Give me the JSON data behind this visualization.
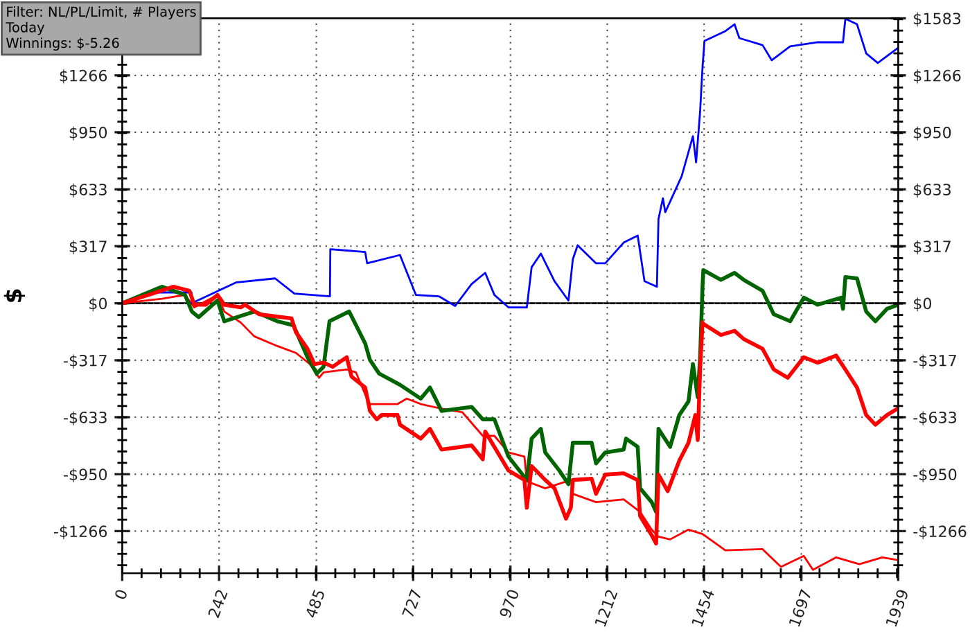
{
  "chart_data": {
    "type": "line",
    "ylabel": "$",
    "annotations": [
      "Filter: NL/PL/Limit, # Players\nToday\nWinnings: $-5.26"
    ],
    "xlim": [
      0,
      1939
    ],
    "xticks": [
      0,
      242,
      485,
      727,
      970,
      1212,
      1454,
      1697,
      1939
    ],
    "ylim": [
      -1500,
      1583
    ],
    "yticks": [
      {
        "value": -1266,
        "label": "-$1266"
      },
      {
        "value": -950,
        "label": "-$950"
      },
      {
        "value": -633,
        "label": "-$633"
      },
      {
        "value": -317,
        "label": "-$317"
      },
      {
        "value": 0,
        "label": "$0"
      },
      {
        "value": 317,
        "label": "$317"
      },
      {
        "value": 633,
        "label": "$633"
      },
      {
        "value": 950,
        "label": "$950"
      },
      {
        "value": 1266,
        "label": "$1266"
      }
    ],
    "y2lim": [
      -1500,
      1583
    ],
    "y2ticks": [
      {
        "value": -1266,
        "label": "-$1266"
      },
      {
        "value": -950,
        "label": "-$950"
      },
      {
        "value": -633,
        "label": "-$633"
      },
      {
        "value": -317,
        "label": "-$317"
      },
      {
        "value": 0,
        "label": "$0"
      },
      {
        "value": 317,
        "label": "$317"
      },
      {
        "value": 633,
        "label": "$633"
      },
      {
        "value": 950,
        "label": "$950"
      },
      {
        "value": 1266,
        "label": "$1266"
      },
      {
        "value": 1583,
        "label": "$1583"
      }
    ],
    "grid": true,
    "marker": "none",
    "line_style": "solid",
    "ref_lines": [
      {
        "axis": "y",
        "value": 0,
        "color": "#000000"
      }
    ],
    "series": [
      {
        "color": "#ff0000",
        "x": [
          0,
          99,
          157,
          180,
          238,
          255,
          296,
          330,
          388,
          434,
          469,
          492,
          503,
          561,
          584,
          607,
          619,
          630,
          688,
          711,
          746,
          792,
          850,
          901,
          930,
          965,
          1005,
          1011,
          1057,
          1121,
          1126,
          1184,
          1253,
          1294,
          1323,
          1340,
          1369,
          1415,
          1450,
          1507,
          1600,
          1646,
          1703,
          1726,
          1784,
          1842,
          1899,
          1939
        ],
        "values": [
          0,
          25,
          46,
          -23,
          46,
          -46,
          -107,
          -184,
          -238,
          -276,
          -338,
          -414,
          -384,
          -368,
          -384,
          -506,
          -560,
          -560,
          -560,
          -530,
          -560,
          -583,
          -606,
          -737,
          -737,
          -829,
          -852,
          -990,
          -1028,
          -982,
          -1059,
          -1105,
          -1090,
          -1159,
          -1258,
          -1297,
          -1312,
          -1258,
          -1282,
          -1373,
          -1366,
          -1465,
          -1404,
          -1481,
          -1412,
          -1450,
          -1412,
          -1427
        ]
      },
      {
        "color": "#0000ff",
        "x": [
          0,
          88,
          173,
          174,
          284,
          382,
          430,
          519,
          520,
          607,
          612,
          694,
          734,
          792,
          832,
          873,
          907,
          930,
          965,
          1011,
          1023,
          1046,
          1080,
          1115,
          1126,
          1138,
          1184,
          1207,
          1253,
          1288,
          1305,
          1336,
          1340,
          1351,
          1357,
          1398,
          1426,
          1434,
          1444,
          1450,
          1455,
          1507,
          1530,
          1542,
          1600,
          1623,
          1669,
          1738,
          1801,
          1807,
          1836,
          1859,
          1888,
          1939
        ],
        "values": [
          0,
          60,
          60,
          0,
          115,
          138,
          54,
          38,
          300,
          285,
          222,
          268,
          46,
          38,
          -15,
          107,
          169,
          46,
          -23,
          -23,
          200,
          276,
          123,
          15,
          245,
          322,
          222,
          222,
          337,
          376,
          123,
          92,
          468,
          583,
          506,
          706,
          928,
          783,
          1066,
          1312,
          1458,
          1512,
          1550,
          1473,
          1434,
          1350,
          1427,
          1450,
          1450,
          1581,
          1550,
          1388,
          1335,
          1419
        ]
      },
      {
        "color": "#006400",
        "x": [
          0,
          99,
          157,
          174,
          191,
          238,
          255,
          330,
          388,
          428,
          463,
          486,
          503,
          518,
          567,
          607,
          619,
          642,
          694,
          746,
          769,
          798,
          873,
          901,
          930,
          965,
          1011,
          1023,
          1046,
          1057,
          1092,
          1115,
          1126,
          1173,
          1184,
          1207,
          1253,
          1259,
          1288,
          1294,
          1323,
          1334,
          1340,
          1369,
          1392,
          1415,
          1426,
          1438,
          1444,
          1450,
          1452,
          1496,
          1530,
          1553,
          1600,
          1628,
          1669,
          1703,
          1738,
          1796,
          1801,
          1807,
          1836,
          1859,
          1882,
          1911,
          1939
        ],
        "values": [
          0,
          92,
          46,
          -46,
          -77,
          15,
          -100,
          -46,
          -100,
          -123,
          -300,
          -391,
          -353,
          -100,
          -46,
          -223,
          -315,
          -391,
          -453,
          -530,
          -468,
          -598,
          -576,
          -645,
          -645,
          -852,
          -982,
          -752,
          -698,
          -829,
          -929,
          -1005,
          -775,
          -775,
          -890,
          -829,
          -813,
          -752,
          -798,
          -1028,
          -1105,
          -1159,
          -698,
          -798,
          -621,
          -545,
          -338,
          -522,
          -300,
          92,
          184,
          130,
          169,
          130,
          69,
          -61,
          -100,
          31,
          -8,
          31,
          -31,
          146,
          138,
          -46,
          -100,
          -31,
          -8
        ]
      },
      {
        "color": "#ff0000",
        "x": [
          0,
          76,
          128,
          168,
          180,
          209,
          238,
          255,
          296,
          307,
          342,
          423,
          434,
          463,
          480,
          503,
          526,
          561,
          573,
          607,
          619,
          636,
          648,
          688,
          694,
          746,
          769,
          798,
          873,
          901,
          907,
          965,
          1005,
          1011,
          1023,
          1057,
          1080,
          1109,
          1121,
          1126,
          1173,
          1184,
          1207,
          1253,
          1288,
          1294,
          1323,
          1334,
          1340,
          1363,
          1392,
          1415,
          1432,
          1438,
          1444,
          1450,
          1452,
          1496,
          1530,
          1553,
          1600,
          1628,
          1663,
          1703,
          1738,
          1784,
          1807,
          1836,
          1859,
          1882,
          1911,
          1939
        ],
        "values": [
          0,
          54,
          92,
          69,
          -8,
          -8,
          46,
          -8,
          -23,
          -8,
          -61,
          -84,
          -161,
          -253,
          -338,
          -330,
          -353,
          -300,
          -407,
          -468,
          -598,
          -645,
          -621,
          -621,
          -675,
          -752,
          -698,
          -813,
          -790,
          -867,
          -713,
          -929,
          -982,
          -1136,
          -905,
          -982,
          -1028,
          -1197,
          -1136,
          -982,
          -975,
          -1059,
          -952,
          -945,
          -982,
          -1182,
          -1289,
          -1335,
          -952,
          -1044,
          -875,
          -775,
          -621,
          -760,
          -368,
          -107,
          -115,
          -176,
          -153,
          -199,
          -253,
          -368,
          -414,
          -300,
          -330,
          -291,
          -368,
          -468,
          -621,
          -675,
          -621,
          -583
        ]
      }
    ]
  }
}
